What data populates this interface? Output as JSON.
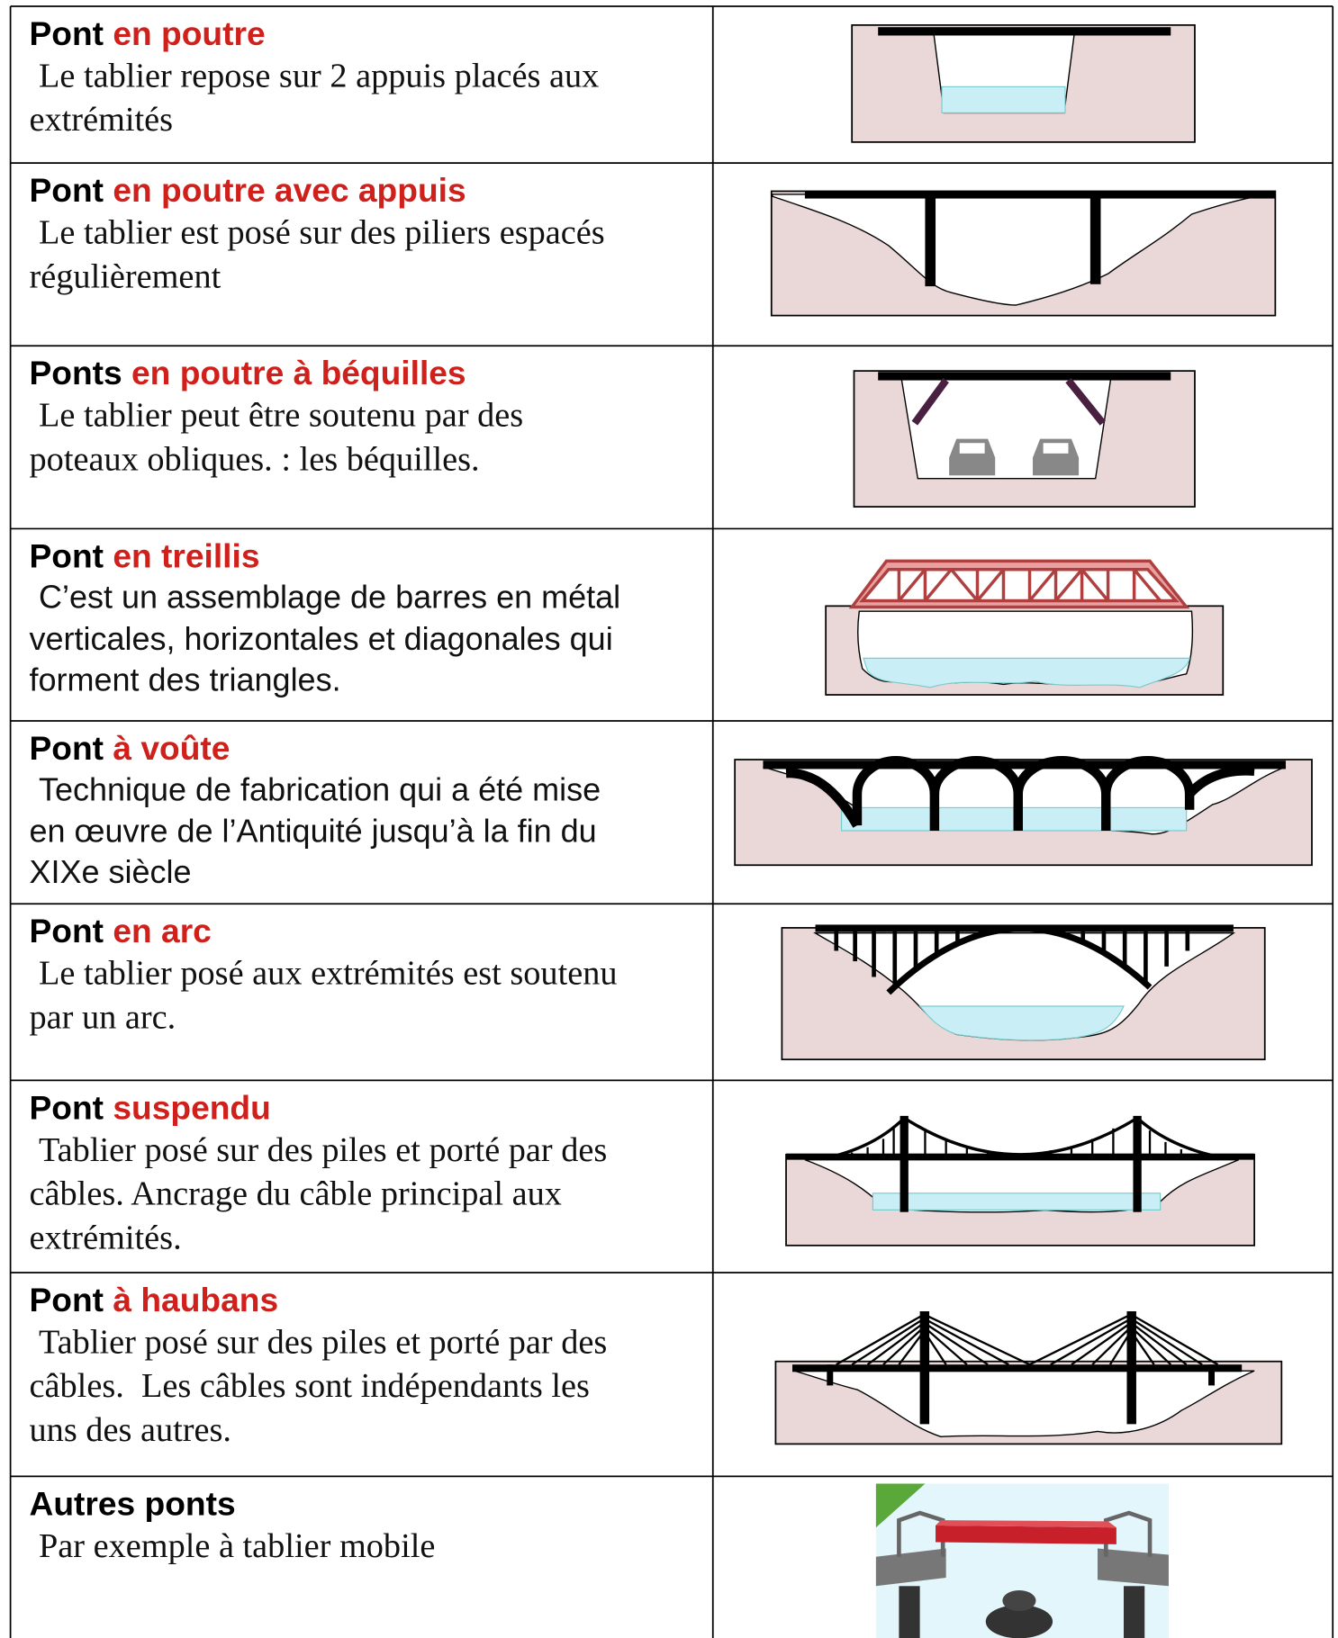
{
  "table": {
    "rows": [
      {
        "title": {
          "lead": "Pont",
          "highlight": "en poutre"
        },
        "description": [
          "Le tablier repose sur 2 appuis placés aux",
          "extrémités"
        ]
      },
      {
        "title": {
          "lead": "Pont",
          "highlight": "en poutre avec appuis"
        },
        "description": [
          "Le tablier est posé sur des piliers espacés",
          "régulièrement"
        ]
      },
      {
        "title": {
          "lead": "Ponts",
          "highlight": "en poutre à béquilles"
        },
        "description": [
          "Le tablier peut être soutenu par des",
          "poteaux obliques. : les béquilles."
        ]
      },
      {
        "title": {
          "lead": "Pont",
          "highlight": "en treillis"
        },
        "description": [
          "C’est un assemblage de barres en métal",
          "verticales, horizontales et diagonales qui",
          "forment des triangles."
        ]
      },
      {
        "title": {
          "lead": "Pont",
          "highlight": "à voûte"
        },
        "description": [
          "Technique de fabrication qui a été mise",
          "en œuvre de l’Antiquité jusqu’à la fin du",
          "XIXe siècle"
        ]
      },
      {
        "title": {
          "lead": "Pont",
          "highlight": "en arc"
        },
        "description": [
          "Le tablier posé aux extrémités est soutenu",
          "par un arc."
        ]
      },
      {
        "title": {
          "lead": "Pont",
          "highlight": "suspendu"
        },
        "description": [
          "Tablier posé sur des piles et porté par des",
          "câbles. Ancrage du câble principal aux",
          "extrémités."
        ]
      },
      {
        "title": {
          "lead": "Pont",
          "highlight": "à haubans"
        },
        "description": [
          "Tablier posé sur des piles et porté par des",
          "câbles.  Les câbles sont indépendants les",
          "uns des autres."
        ]
      },
      {
        "title": {
          "lead": "Autres ponts"
        },
        "description": [
          "Par exemple à tablier mobile"
        ]
      }
    ]
  }
}
